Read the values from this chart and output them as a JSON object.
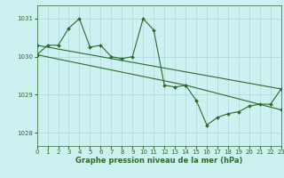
{
  "title": "Graphe pression niveau de la mer (hPa)",
  "bg_color": "#cdf0f0",
  "grid_color": "#a8d8d8",
  "line_color": "#2d6a2d",
  "xlim": [
    0,
    23
  ],
  "ylim": [
    1027.65,
    1031.35
  ],
  "yticks": [
    1028,
    1029,
    1030,
    1031
  ],
  "xticks": [
    0,
    1,
    2,
    3,
    4,
    5,
    6,
    7,
    8,
    9,
    10,
    11,
    12,
    13,
    14,
    15,
    16,
    17,
    18,
    19,
    20,
    21,
    22,
    23
  ],
  "series1_x": [
    0,
    1,
    2,
    3,
    4,
    5,
    6,
    7,
    8,
    9,
    10,
    11,
    12,
    13,
    14,
    15,
    16,
    17,
    18,
    19,
    20,
    21,
    22,
    23
  ],
  "series1_y": [
    1030.05,
    1030.3,
    1030.3,
    1030.75,
    1031.0,
    1030.25,
    1030.3,
    1030.0,
    1029.95,
    1030.0,
    1031.0,
    1030.7,
    1029.25,
    1029.2,
    1029.25,
    1028.85,
    1028.2,
    1028.4,
    1028.5,
    1028.55,
    1028.7,
    1028.75,
    1028.75,
    1029.15
  ],
  "series2_x": [
    0,
    23
  ],
  "series2_y": [
    1030.3,
    1029.15
  ],
  "series3_x": [
    0,
    14,
    23
  ],
  "series3_y": [
    1030.05,
    1029.25,
    1028.6
  ],
  "marker": "D",
  "markersize": 2.0,
  "linewidth": 0.8,
  "title_fontsize": 6.0,
  "tick_fontsize": 5.0
}
